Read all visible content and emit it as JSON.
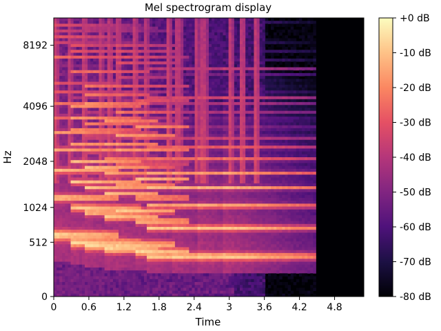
{
  "chart_data": {
    "type": "heatmap",
    "title": "Mel spectrogram display",
    "xlabel": "Time",
    "ylabel": "Hz",
    "x_ticks": [
      "0",
      "0.6",
      "1.2",
      "1.8",
      "2.4",
      "3",
      "3.6",
      "4.2",
      "4.8"
    ],
    "x_tick_values": [
      0,
      0.6,
      1.2,
      1.8,
      2.4,
      3.0,
      3.6,
      4.2,
      4.8
    ],
    "xlim": [
      0,
      5.3
    ],
    "y_ticks": [
      "0",
      "512",
      "1024",
      "2048",
      "4096",
      "8192"
    ],
    "y_tick_values": [
      0,
      512,
      1024,
      2048,
      4096,
      8192
    ],
    "ylim": [
      0,
      11025
    ],
    "y_scale": "mel",
    "colorbar": {
      "labels": [
        "+0 dB",
        "-10 dB",
        "-20 dB",
        "-30 dB",
        "-40 dB",
        "-50 dB",
        "-60 dB",
        "-70 dB",
        "-80 dB"
      ],
      "values": [
        0,
        -10,
        -20,
        -30,
        -40,
        -50,
        -60,
        -70,
        -80
      ],
      "range": [
        -80,
        0
      ],
      "colormap": "magma"
    },
    "note_onsets": [
      0.02,
      0.25,
      0.52,
      0.78,
      0.95,
      1.1,
      1.38,
      1.55,
      1.95,
      2.12,
      2.42,
      2.55,
      3.0,
      3.22,
      3.45
    ],
    "notes": [
      {
        "start": 0.0,
        "end": 0.5,
        "f0": 600
      },
      {
        "start": 0.3,
        "end": 0.9,
        "f0": 510
      },
      {
        "start": 0.55,
        "end": 1.05,
        "f0": 470
      },
      {
        "start": 0.85,
        "end": 1.2,
        "f0": 430
      },
      {
        "start": 1.05,
        "end": 1.45,
        "f0": 480
      },
      {
        "start": 1.4,
        "end": 1.7,
        "f0": 400
      },
      {
        "start": 1.6,
        "end": 2.1,
        "f0": 350
      },
      {
        "start": 2.0,
        "end": 2.5,
        "f0": 350
      },
      {
        "start": 2.45,
        "end": 3.2,
        "f0": 350
      },
      {
        "start": 2.9,
        "end": 4.4,
        "f0": 350
      }
    ]
  }
}
